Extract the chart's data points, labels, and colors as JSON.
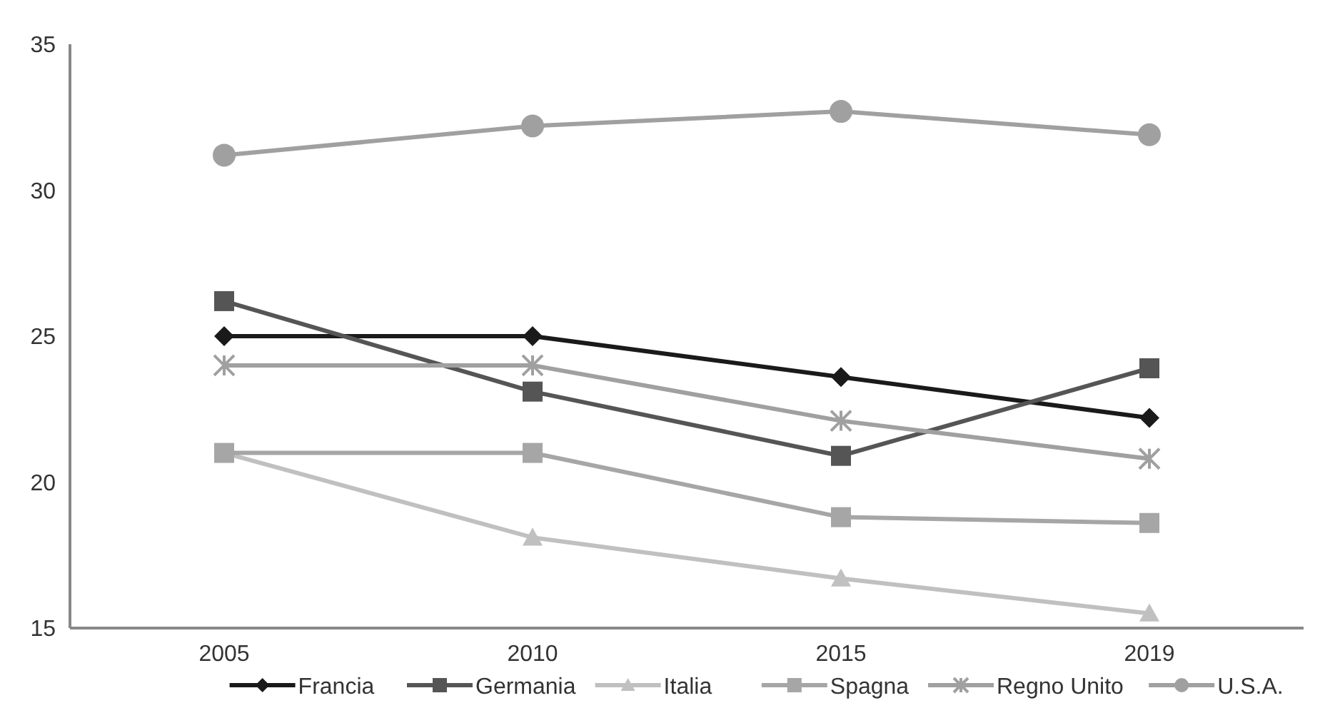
{
  "chart_data": {
    "type": "line",
    "categories": [
      "2005",
      "2010",
      "2015",
      "2019"
    ],
    "ylim": [
      15,
      35
    ],
    "yticks": [
      15,
      20,
      25,
      30,
      35
    ],
    "grid": false,
    "legend": "bottom",
    "line_style": "solid",
    "series": [
      {
        "name": "Francia",
        "color": "#1a1a1a",
        "marker": "diamond",
        "values": [
          25.0,
          25.0,
          23.6,
          22.2
        ]
      },
      {
        "name": "Germania",
        "color": "#555555",
        "marker": "square",
        "values": [
          26.2,
          23.1,
          20.9,
          23.9
        ]
      },
      {
        "name": "Italia",
        "color": "#c0c0c0",
        "marker": "triangle",
        "values": [
          21.0,
          18.1,
          16.7,
          15.5
        ]
      },
      {
        "name": "Spagna",
        "color": "#a6a6a6",
        "marker": "square",
        "values": [
          21.0,
          21.0,
          18.8,
          18.6
        ]
      },
      {
        "name": "Regno Unito",
        "color": "#a0a0a0",
        "marker": "cross",
        "values": [
          24.0,
          24.0,
          22.1,
          20.8
        ]
      },
      {
        "name": "U.S.A.",
        "color": "#a0a0a0",
        "marker": "circle",
        "values": [
          31.2,
          32.2,
          32.7,
          31.9
        ]
      }
    ]
  }
}
